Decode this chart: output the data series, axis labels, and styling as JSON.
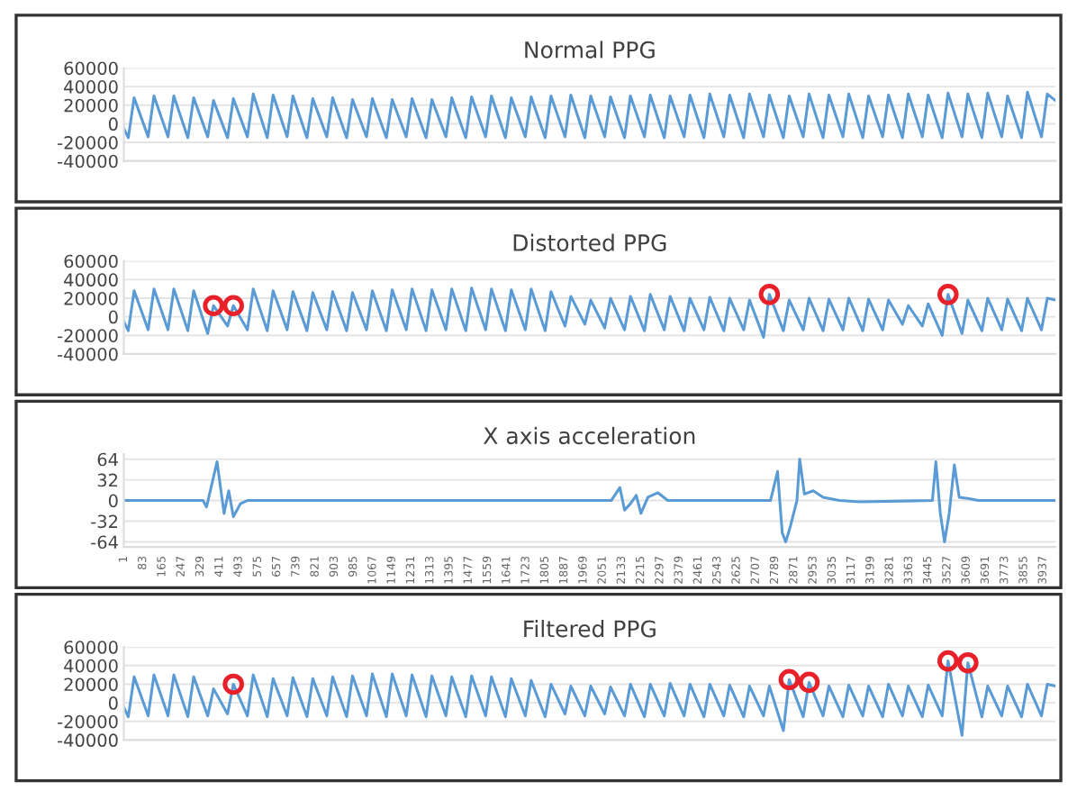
{
  "chart_data": [
    {
      "type": "line",
      "title": "Normal PPG",
      "xlim": [
        1,
        3990
      ],
      "ylim": [
        -40000,
        60000
      ],
      "yticks": [
        -40000,
        -20000,
        0,
        20000,
        40000,
        60000
      ],
      "grid": "y",
      "tick_labels": "y",
      "series": [
        {
          "color": "#5b9bd5",
          "x": [
            1,
            20,
            45,
            105,
            130,
            190,
            215,
            275,
            300,
            360,
            385,
            445,
            470,
            530,
            555,
            615,
            640,
            700,
            725,
            785,
            810,
            870,
            895,
            955,
            980,
            1040,
            1065,
            1125,
            1150,
            1210,
            1235,
            1295,
            1320,
            1380,
            1405,
            1465,
            1490,
            1550,
            1575,
            1635,
            1660,
            1720,
            1745,
            1805,
            1830,
            1890,
            1915,
            1975,
            2000,
            2060,
            2085,
            2145,
            2170,
            2230,
            2255,
            2315,
            2340,
            2400,
            2425,
            2485,
            2510,
            2570,
            2595,
            2655,
            2680,
            2740,
            2765,
            2825,
            2850,
            2910,
            2935,
            2995,
            3020,
            3080,
            3105,
            3165,
            3190,
            3250,
            3275,
            3335,
            3360,
            3420,
            3445,
            3505,
            3530,
            3590,
            3615,
            3675,
            3700,
            3760,
            3785,
            3845,
            3870,
            3930,
            3955,
            3990
          ],
          "values": [
            -5000,
            -15000,
            28000,
            -14000,
            30000,
            -14000,
            30000,
            -15000,
            28000,
            -14000,
            25000,
            -15000,
            27000,
            -14000,
            32000,
            -15000,
            31000,
            -14000,
            30000,
            -15000,
            27000,
            -14000,
            28000,
            -15000,
            26000,
            -14000,
            27000,
            -15000,
            26000,
            -14000,
            27000,
            -15000,
            26000,
            -14000,
            28000,
            -15000,
            29000,
            -14000,
            30000,
            -15000,
            28000,
            -14000,
            29000,
            -15000,
            30000,
            -14000,
            31000,
            -15000,
            30000,
            -14000,
            29000,
            -15000,
            30000,
            -14000,
            31000,
            -15000,
            30000,
            -14000,
            31000,
            -15000,
            32000,
            -14000,
            31000,
            -15000,
            32000,
            -14000,
            31000,
            -15000,
            30000,
            -14000,
            32000,
            -15000,
            31000,
            -14000,
            32000,
            -15000,
            30000,
            -14000,
            31000,
            -15000,
            32000,
            -14000,
            31000,
            -15000,
            33000,
            -14000,
            32000,
            -15000,
            33000,
            -14000,
            30000,
            -15000,
            34000,
            -14000,
            32000,
            25000
          ]
        }
      ]
    },
    {
      "type": "line",
      "title": "Distorted PPG",
      "xlim": [
        1,
        3990
      ],
      "ylim": [
        -40000,
        60000
      ],
      "yticks": [
        -40000,
        -20000,
        0,
        20000,
        40000,
        60000
      ],
      "grid": "y",
      "tick_labels": "y",
      "series": [
        {
          "color": "#5b9bd5",
          "x": [
            1,
            20,
            45,
            105,
            130,
            190,
            215,
            275,
            300,
            360,
            385,
            445,
            470,
            530,
            555,
            615,
            640,
            700,
            725,
            785,
            810,
            870,
            895,
            955,
            980,
            1040,
            1065,
            1125,
            1150,
            1210,
            1235,
            1295,
            1320,
            1380,
            1405,
            1465,
            1490,
            1550,
            1575,
            1635,
            1660,
            1720,
            1745,
            1805,
            1830,
            1890,
            1915,
            1975,
            2000,
            2060,
            2085,
            2145,
            2170,
            2230,
            2255,
            2315,
            2340,
            2400,
            2425,
            2485,
            2510,
            2570,
            2595,
            2655,
            2680,
            2740,
            2765,
            2825,
            2850,
            2910,
            2935,
            2995,
            3020,
            3080,
            3105,
            3165,
            3190,
            3250,
            3275,
            3335,
            3360,
            3420,
            3445,
            3505,
            3530,
            3590,
            3615,
            3675,
            3700,
            3760,
            3785,
            3845,
            3870,
            3930,
            3955,
            3990
          ],
          "values": [
            -5000,
            -15000,
            28000,
            -14000,
            30000,
            -14000,
            30000,
            -15000,
            28000,
            -18000,
            12000,
            -10000,
            12000,
            -14000,
            30000,
            -15000,
            28000,
            -14000,
            27000,
            -15000,
            26000,
            -14000,
            27000,
            -15000,
            26000,
            -14000,
            28000,
            -15000,
            29000,
            -14000,
            30000,
            -15000,
            29000,
            -14000,
            30000,
            -15000,
            31000,
            -14000,
            30000,
            -15000,
            29000,
            -14000,
            30000,
            -15000,
            27000,
            -10000,
            22000,
            -8000,
            18000,
            -12000,
            20000,
            -14000,
            22000,
            -15000,
            24000,
            -14000,
            22000,
            -15000,
            20000,
            -14000,
            21000,
            -15000,
            20000,
            -14000,
            18000,
            -22000,
            24000,
            -15000,
            18000,
            -14000,
            20000,
            -15000,
            19000,
            -14000,
            20000,
            -15000,
            19000,
            -14000,
            18000,
            -8000,
            12000,
            -10000,
            14000,
            -20000,
            24000,
            -18000,
            18000,
            -15000,
            20000,
            -14000,
            19000,
            -15000,
            20000,
            -14000,
            20000,
            18000
          ]
        },
        {
          "type": "scatter",
          "marker": "circle",
          "color": "#e8202a",
          "x": [
            385,
            470,
            2765,
            3530
          ],
          "values": [
            12000,
            12000,
            24000,
            24000
          ]
        }
      ]
    },
    {
      "type": "line",
      "title": "X axis acceleration",
      "xlim": [
        1,
        3990
      ],
      "ylim": [
        -72,
        72
      ],
      "yticks": [
        -64,
        -32,
        0,
        32,
        64
      ],
      "grid": "y",
      "xticks": [
        1,
        83,
        165,
        247,
        329,
        411,
        493,
        575,
        657,
        739,
        821,
        903,
        985,
        1067,
        1149,
        1231,
        1313,
        1395,
        1477,
        1559,
        1641,
        1723,
        1805,
        1887,
        1969,
        2051,
        2133,
        2215,
        2297,
        2379,
        2461,
        2543,
        2625,
        2707,
        2789,
        2871,
        2953,
        3035,
        3117,
        3199,
        3281,
        3363,
        3445,
        3527,
        3609,
        3691,
        3773,
        3855,
        3937
      ],
      "series": [
        {
          "color": "#5b9bd5",
          "x": [
            1,
            340,
            355,
            400,
            430,
            450,
            470,
            500,
            530,
            2088,
            2125,
            2145,
            2170,
            2195,
            2215,
            2245,
            2288,
            2330,
            2770,
            2800,
            2820,
            2835,
            2855,
            2883,
            2895,
            2915,
            2953,
            2995,
            3065,
            3150,
            3463,
            3478,
            3497,
            3515,
            3535,
            3557,
            3578,
            3620,
            3660,
            3990
          ],
          "values": [
            0,
            0,
            -10,
            60,
            -20,
            15,
            -25,
            -5,
            0,
            0,
            20,
            -15,
            -5,
            8,
            -20,
            5,
            12,
            0,
            0,
            45,
            -50,
            -64,
            -40,
            0,
            64,
            10,
            15,
            5,
            0,
            -2,
            0,
            60,
            -20,
            -64,
            -20,
            55,
            5,
            3,
            0,
            0
          ]
        }
      ]
    },
    {
      "type": "line",
      "title": "Filtered PPG",
      "xlim": [
        1,
        3990
      ],
      "ylim": [
        -40000,
        60000
      ],
      "yticks": [
        -40000,
        -20000,
        0,
        20000,
        40000,
        60000
      ],
      "grid": "y",
      "tick_labels": "y",
      "series": [
        {
          "color": "#5b9bd5",
          "x": [
            1,
            20,
            45,
            105,
            130,
            190,
            215,
            275,
            300,
            360,
            385,
            445,
            470,
            530,
            555,
            615,
            640,
            700,
            725,
            785,
            810,
            870,
            895,
            955,
            980,
            1040,
            1065,
            1125,
            1150,
            1210,
            1235,
            1295,
            1320,
            1380,
            1405,
            1465,
            1490,
            1550,
            1575,
            1635,
            1660,
            1720,
            1745,
            1805,
            1830,
            1890,
            1915,
            1975,
            2000,
            2060,
            2085,
            2145,
            2170,
            2230,
            2255,
            2315,
            2340,
            2400,
            2425,
            2485,
            2510,
            2570,
            2595,
            2655,
            2680,
            2740,
            2765,
            2825,
            2850,
            2910,
            2935,
            2995,
            3020,
            3080,
            3105,
            3165,
            3190,
            3250,
            3275,
            3335,
            3360,
            3420,
            3445,
            3505,
            3530,
            3590,
            3615,
            3675,
            3700,
            3760,
            3785,
            3845,
            3870,
            3930,
            3955,
            3990
          ],
          "values": [
            -5000,
            -15000,
            28000,
            -14000,
            30000,
            -14000,
            30000,
            -15000,
            28000,
            -14000,
            15000,
            -12000,
            20000,
            -14000,
            30000,
            -15000,
            26000,
            -14000,
            27000,
            -15000,
            26000,
            -14000,
            28000,
            -15000,
            29000,
            -14000,
            31000,
            -15000,
            31000,
            -14000,
            30000,
            -15000,
            29000,
            -14000,
            28000,
            -15000,
            29000,
            -14000,
            28000,
            -15000,
            26000,
            -14000,
            24000,
            -15000,
            20000,
            -12000,
            18000,
            -14000,
            18000,
            -12000,
            17000,
            -14000,
            20000,
            -15000,
            20000,
            -14000,
            21000,
            -14000,
            20000,
            -15000,
            20000,
            -14000,
            19000,
            -15000,
            18000,
            -14000,
            18000,
            -30000,
            25000,
            -15000,
            22000,
            -14000,
            18000,
            -15000,
            19000,
            -14000,
            18000,
            -15000,
            20000,
            -14000,
            18000,
            -15000,
            19000,
            -14000,
            45000,
            -35000,
            43000,
            -15000,
            18000,
            -14000,
            18000,
            -15000,
            20000,
            -14000,
            20000,
            18000
          ]
        },
        {
          "type": "scatter",
          "marker": "circle",
          "color": "#e8202a",
          "x": [
            470,
            2850,
            2935,
            3530,
            3615
          ],
          "values": [
            20000,
            25000,
            22000,
            45000,
            43000
          ]
        }
      ]
    }
  ]
}
